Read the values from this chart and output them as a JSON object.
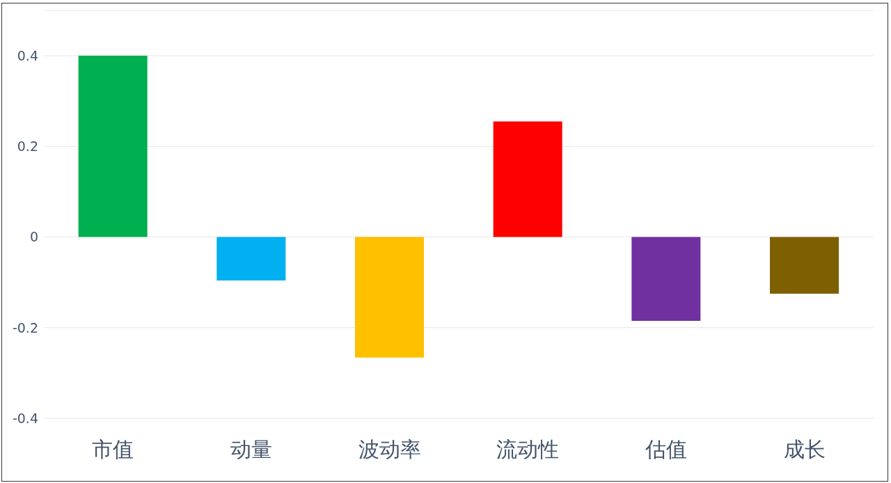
{
  "chart_data": {
    "type": "bar",
    "categories": [
      "市值",
      "动量",
      "波动率",
      "流动性",
      "估值",
      "成长"
    ],
    "values": [
      0.4,
      -0.096,
      -0.266,
      0.255,
      -0.185,
      -0.125
    ],
    "colors": [
      "#00b050",
      "#00b0f0",
      "#ffc000",
      "#ff0000",
      "#7030a0",
      "#7f6000"
    ],
    "ylim": [
      -0.4,
      0.5
    ],
    "yticks": [
      -0.4,
      -0.2,
      0,
      0.2,
      0.4
    ],
    "grid": "y"
  }
}
